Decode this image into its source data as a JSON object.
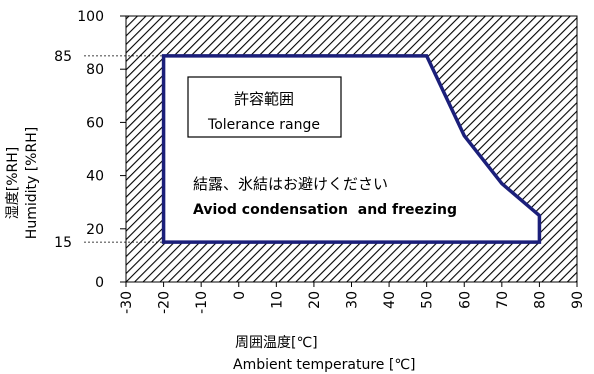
{
  "chart_data": {
    "type": "area",
    "x_ticks": [
      -30,
      -20,
      -10,
      0,
      10,
      20,
      30,
      40,
      50,
      60,
      70,
      80,
      90
    ],
    "y_ticks": [
      0,
      20,
      40,
      60,
      80,
      100
    ],
    "xlim": [
      -30,
      90
    ],
    "ylim": [
      0,
      100
    ],
    "grid": false,
    "extra_y_labels": [
      {
        "value": 85,
        "label": "85"
      },
      {
        "value": 15,
        "label": "15"
      }
    ],
    "tolerance_polygon": {
      "x": [
        -20,
        50,
        60,
        70,
        80,
        80,
        -20
      ],
      "y": [
        85,
        85,
        55,
        37,
        25,
        15,
        15
      ]
    },
    "xlabel_jp": "周囲温度[℃]",
    "xlabel_en": "Ambient temperature [℃]",
    "ylabel_jp": "湿度[%RH]",
    "ylabel_en": "Humidity [%RH]",
    "box_title_jp": "許容範囲",
    "box_title_en": "Tolerance range",
    "note_jp": "結露、氷結はお避けください",
    "note_en": "Aviod condensation  and freezing",
    "colors": {
      "outline": "#1b1f7a",
      "hatch": "#000000",
      "fill": "#ffffff"
    }
  }
}
